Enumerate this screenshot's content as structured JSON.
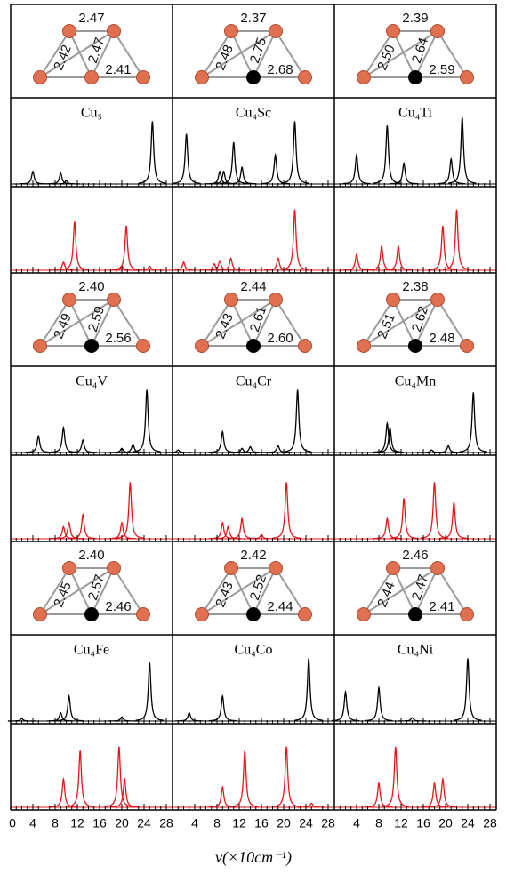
{
  "chart_data": {
    "type": "spectrum-grid",
    "x_label": "ν(×10cm⁻¹)",
    "xlim": [
      0,
      28
    ],
    "xticks": [
      0,
      4,
      8,
      12,
      16,
      20,
      24,
      28
    ],
    "black_color": "#000000",
    "red_color": "#e8141b",
    "panels": [
      {
        "name": "Cu₅",
        "dopant": false,
        "bonds": [
          "2.47",
          "2.42",
          "2.47",
          "2.41"
        ],
        "black": [
          [
            4,
            0.15
          ],
          [
            9,
            0.13
          ],
          [
            10,
            0.04
          ],
          [
            25.5,
            0.75
          ]
        ],
        "red": [
          [
            9.5,
            0.1
          ],
          [
            11.5,
            0.6
          ],
          [
            20,
            0.05
          ],
          [
            20.8,
            0.55
          ],
          [
            25,
            0.05
          ]
        ]
      },
      {
        "name": "Cu₄Sc",
        "dopant": true,
        "bonds": [
          "2.37",
          "2.48",
          "2.75",
          "2.68"
        ],
        "black": [
          [
            2.5,
            0.6
          ],
          [
            8.5,
            0.15
          ],
          [
            9.2,
            0.15
          ],
          [
            11,
            0.5
          ],
          [
            12.5,
            0.2
          ],
          [
            18.5,
            0.35
          ],
          [
            22,
            0.75
          ]
        ],
        "red": [
          [
            2,
            0.1
          ],
          [
            7.5,
            0.08
          ],
          [
            8.5,
            0.12
          ],
          [
            10.5,
            0.15
          ],
          [
            19,
            0.15
          ],
          [
            22,
            0.75
          ]
        ]
      },
      {
        "name": "Cu₄Ti",
        "dopant": true,
        "bonds": [
          "2.39",
          "2.50",
          "2.64",
          "2.59"
        ],
        "black": [
          [
            4,
            0.35
          ],
          [
            9.5,
            0.7
          ],
          [
            12.5,
            0.25
          ],
          [
            21,
            0.3
          ],
          [
            23,
            0.8
          ]
        ],
        "red": [
          [
            4,
            0.2
          ],
          [
            8.5,
            0.3
          ],
          [
            11.5,
            0.3
          ],
          [
            19.5,
            0.55
          ],
          [
            22,
            0.75
          ]
        ]
      },
      {
        "name": "Cu₄V",
        "dopant": true,
        "bonds": [
          "2.40",
          "2.49",
          "2.59",
          "2.56"
        ],
        "black": [
          [
            5,
            0.2
          ],
          [
            9.5,
            0.3
          ],
          [
            13,
            0.15
          ],
          [
            20,
            0.05
          ],
          [
            22,
            0.1
          ],
          [
            24.5,
            0.75
          ]
        ],
        "red": [
          [
            9.5,
            0.15
          ],
          [
            10.5,
            0.2
          ],
          [
            13,
            0.3
          ],
          [
            20,
            0.2
          ],
          [
            21.5,
            0.7
          ]
        ]
      },
      {
        "name": "Cu₄Cr",
        "dopant": true,
        "bonds": [
          "2.44",
          "2.43",
          "2.61",
          "2.60"
        ],
        "black": [
          [
            1,
            0.03
          ],
          [
            9,
            0.25
          ],
          [
            12.5,
            0.05
          ],
          [
            14,
            0.07
          ],
          [
            19,
            0.08
          ],
          [
            22.5,
            0.75
          ]
        ],
        "red": [
          [
            9,
            0.2
          ],
          [
            10,
            0.15
          ],
          [
            12.5,
            0.25
          ],
          [
            16,
            0.05
          ],
          [
            20.5,
            0.7
          ]
        ]
      },
      {
        "name": "Cu₄Mn",
        "dopant": true,
        "bonds": [
          "2.38",
          "2.51",
          "2.62",
          "2.48"
        ],
        "black": [
          [
            9.5,
            0.35
          ],
          [
            10,
            0.3
          ],
          [
            17.5,
            0.03
          ],
          [
            20.5,
            0.08
          ],
          [
            25,
            0.72
          ]
        ],
        "red": [
          [
            9.5,
            0.25
          ],
          [
            12.5,
            0.5
          ],
          [
            18,
            0.7
          ],
          [
            21.5,
            0.45
          ]
        ]
      },
      {
        "name": "Cu₄Fe",
        "dopant": true,
        "bonds": [
          "2.40",
          "2.45",
          "2.57",
          "2.46"
        ],
        "black": [
          [
            2,
            0.03
          ],
          [
            9,
            0.1
          ],
          [
            10.5,
            0.3
          ],
          [
            20,
            0.05
          ],
          [
            25,
            0.7
          ]
        ],
        "red": [
          [
            9.5,
            0.35
          ],
          [
            12.5,
            0.7
          ],
          [
            19.5,
            0.75
          ],
          [
            20.5,
            0.35
          ]
        ]
      },
      {
        "name": "Cu₄Co",
        "dopant": true,
        "bonds": [
          "2.42",
          "2.43",
          "2.52",
          "2.44"
        ],
        "black": [
          [
            3,
            0.1
          ],
          [
            9,
            0.3
          ],
          [
            24.5,
            0.75
          ]
        ],
        "red": [
          [
            9,
            0.25
          ],
          [
            13,
            0.7
          ],
          [
            20.5,
            0.75
          ],
          [
            25,
            0.05
          ]
        ]
      },
      {
        "name": "Cu₄Ni",
        "dopant": true,
        "bonds": [
          "2.46",
          "2.44",
          "2.47",
          "2.41"
        ],
        "black": [
          [
            2,
            0.35
          ],
          [
            8,
            0.4
          ],
          [
            14,
            0.04
          ],
          [
            24,
            0.75
          ]
        ],
        "red": [
          [
            8,
            0.3
          ],
          [
            11,
            0.75
          ],
          [
            18,
            0.3
          ],
          [
            19.5,
            0.35
          ]
        ]
      }
    ]
  }
}
